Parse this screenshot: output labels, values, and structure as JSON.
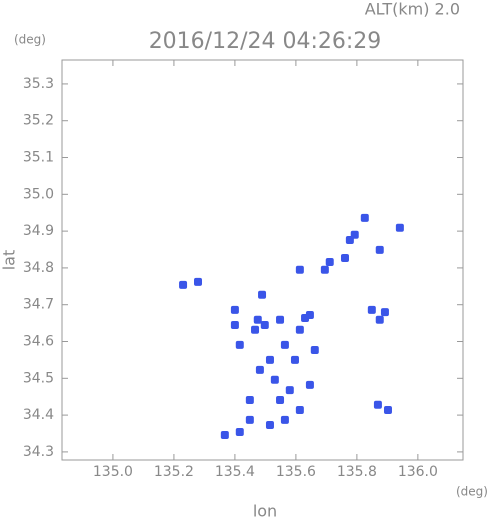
{
  "chart_data": {
    "type": "scatter",
    "title": "2016/12/24 04:26:29",
    "subtitle": "ALT(km) 2.0",
    "y_unit": "(deg)",
    "x_unit": "(deg)",
    "x_label": "lon",
    "y_label": "lat",
    "color": "#3a55e8",
    "x": [
      135.826,
      135.793,
      135.777,
      135.875,
      135.941,
      135.711,
      135.761,
      135.695,
      135.613,
      135.23,
      135.279,
      135.4,
      135.489,
      135.475,
      135.466,
      135.4,
      135.416,
      135.498,
      135.548,
      135.63,
      135.613,
      135.646,
      135.564,
      135.515,
      135.531,
      135.548,
      135.58,
      135.646,
      135.613,
      135.564,
      135.515,
      135.449,
      135.416,
      135.367,
      135.849,
      135.875,
      135.892,
      135.869,
      135.902,
      135.662,
      135.597,
      135.482,
      135.449
    ],
    "values": [
      34.936,
      34.89,
      34.876,
      34.849,
      34.909,
      34.816,
      34.827,
      34.795,
      34.795,
      34.754,
      34.762,
      34.686,
      34.727,
      34.659,
      34.632,
      34.645,
      34.591,
      34.645,
      34.659,
      34.664,
      34.632,
      34.672,
      34.591,
      34.55,
      34.496,
      34.441,
      34.468,
      34.482,
      34.414,
      34.387,
      34.373,
      34.387,
      34.354,
      34.346,
      34.686,
      34.659,
      34.68,
      34.428,
      34.414,
      34.577,
      34.55,
      34.523,
      34.441
    ],
    "xlim": [
      134.833,
      136.148
    ],
    "ylim": [
      34.278,
      35.365
    ],
    "xticks": [
      {
        "value": 135,
        "label": "135.0"
      },
      135.2,
      135.4,
      135.6,
      135.8,
      {
        "value": 136,
        "label": "136.0"
      }
    ],
    "yticks": [
      34.3,
      34.4,
      34.5,
      34.6,
      34.7,
      34.8,
      34.9,
      {
        "value": 35,
        "label": "35.0"
      },
      35.1,
      35.2,
      35.3
    ]
  }
}
